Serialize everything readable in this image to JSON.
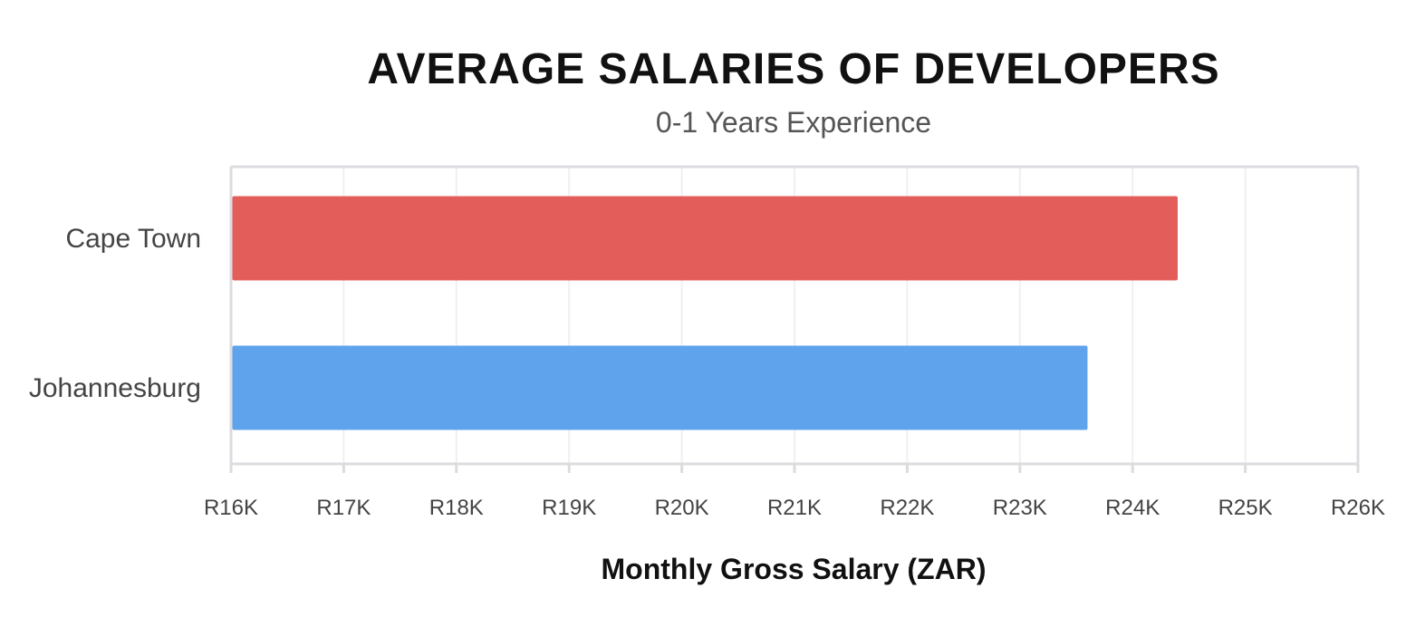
{
  "chart_data": {
    "type": "bar",
    "orientation": "horizontal",
    "title": "AVERAGE SALARIES OF DEVELOPERS",
    "subtitle": "0-1 Years Experience",
    "xlabel": "Monthly Gross Salary (ZAR)",
    "ylabel": "",
    "categories": [
      "Cape Town",
      "Johannesburg"
    ],
    "values": [
      24400,
      23600
    ],
    "bar_colors": [
      "#e35d5b",
      "#5fa3ec"
    ],
    "xlim": [
      16000,
      26000
    ],
    "x_ticks": [
      16000,
      17000,
      18000,
      19000,
      20000,
      21000,
      22000,
      23000,
      24000,
      25000,
      26000
    ],
    "x_tick_labels": [
      "R16K",
      "R17K",
      "R18K",
      "R19K",
      "R20K",
      "R21K",
      "R22K",
      "R23K",
      "R24K",
      "R25K",
      "R26K"
    ],
    "grid": true,
    "legend": "none"
  }
}
